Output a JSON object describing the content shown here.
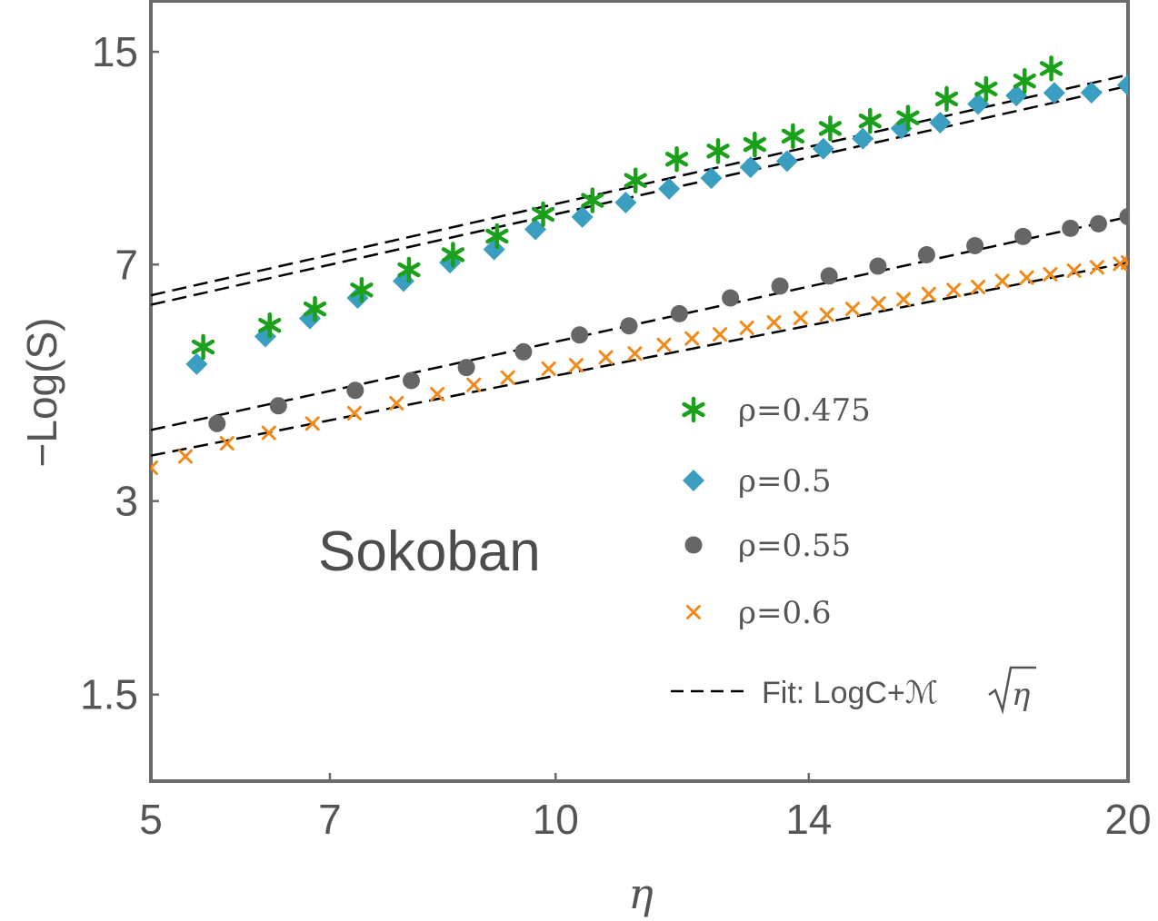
{
  "chart_data": {
    "type": "scatter",
    "title": "",
    "annotation": "Sokoban",
    "xlabel": "η",
    "ylabel": "−Log(S)",
    "x_scale": "sqrt",
    "y_scale": "log",
    "xlim": [
      5,
      20
    ],
    "ylim": [
      1.1,
      18
    ],
    "x_ticks": [
      5,
      7,
      10,
      14,
      20
    ],
    "x_tick_labels": [
      "5",
      "7",
      "10",
      "14",
      "20"
    ],
    "y_ticks": [
      1.5,
      3,
      7,
      15
    ],
    "y_tick_labels": [
      "1.5",
      "3",
      "7",
      "15"
    ],
    "series": [
      {
        "name": "ρ=0.475",
        "marker": "star",
        "color": "#1aa01a",
        "x": [
          5.55,
          6.29,
          6.82,
          7.39,
          7.99,
          8.57,
          9.17,
          9.82,
          10.54,
          11.19,
          11.83,
          12.49,
          13.09,
          13.73,
          14.37,
          15.07,
          15.75,
          16.46,
          17.2,
          17.94,
          18.46
        ],
        "y": [
          5.21,
          5.63,
          5.97,
          6.39,
          6.87,
          7.25,
          7.75,
          8.38,
          8.81,
          9.46,
          10.21,
          10.51,
          10.76,
          11.09,
          11.4,
          11.71,
          11.84,
          12.67,
          13.13,
          13.51,
          14.13
        ]
      },
      {
        "name": "ρ=0.5",
        "marker": "diamond",
        "color": "#3a9ec0",
        "x": [
          5.48,
          6.24,
          6.76,
          7.34,
          7.92,
          8.53,
          9.13,
          9.71,
          10.39,
          11.04,
          11.71,
          12.38,
          13.02,
          13.63,
          14.25,
          14.94,
          15.63,
          16.34,
          17.05,
          17.78,
          18.52,
          19.26,
          20.0
        ],
        "y": [
          4.9,
          5.41,
          5.77,
          6.21,
          6.6,
          7.05,
          7.39,
          7.94,
          8.3,
          8.74,
          9.18,
          9.54,
          9.92,
          10.14,
          10.6,
          10.99,
          11.4,
          11.64,
          12.44,
          12.82,
          12.95,
          12.96,
          13.31
        ]
      },
      {
        "name": "ρ=0.55",
        "marker": "circle",
        "color": "#666666",
        "x": [
          5.7,
          6.39,
          7.31,
          8.02,
          8.75,
          9.54,
          10.35,
          11.09,
          11.87,
          12.69,
          13.51,
          14.35,
          15.21,
          16.09,
          16.99,
          17.91,
          18.84,
          19.4,
          20.0
        ],
        "y": [
          3.96,
          4.22,
          4.46,
          4.62,
          4.84,
          5.12,
          5.44,
          5.62,
          5.87,
          6.21,
          6.48,
          6.72,
          6.96,
          7.25,
          7.49,
          7.74,
          7.97,
          8.1,
          8.31
        ]
      },
      {
        "name": "ρ=0.6",
        "marker": "x",
        "color": "#f08a1a",
        "x": [
          5.0,
          5.36,
          5.81,
          6.28,
          6.79,
          7.3,
          7.83,
          8.36,
          8.85,
          9.32,
          9.9,
          10.3,
          10.74,
          11.18,
          11.63,
          12.07,
          12.52,
          12.96,
          13.41,
          13.86,
          14.31,
          14.76,
          15.22,
          15.67,
          16.13,
          16.59,
          17.05,
          17.51,
          17.98,
          18.44,
          18.91,
          19.37,
          19.84,
          20.0
        ],
        "y": [
          3.38,
          3.52,
          3.69,
          3.83,
          3.96,
          4.11,
          4.26,
          4.4,
          4.55,
          4.67,
          4.82,
          4.88,
          5.02,
          5.09,
          5.25,
          5.37,
          5.45,
          5.58,
          5.69,
          5.78,
          5.85,
          5.97,
          6.09,
          6.18,
          6.3,
          6.39,
          6.46,
          6.6,
          6.68,
          6.76,
          6.85,
          6.93,
          7.02,
          7.05
        ]
      }
    ],
    "fits": [
      {
        "name": "fit-0.475",
        "x": [
          5,
          20
        ],
        "y": [
          6.27,
          13.81
        ]
      },
      {
        "name": "fit-0.5",
        "x": [
          5,
          20
        ],
        "y": [
          6.06,
          13.27
        ]
      },
      {
        "name": "fit-0.55",
        "x": [
          5,
          20
        ],
        "y": [
          3.87,
          8.3
        ]
      },
      {
        "name": "fit-0.6",
        "x": [
          5,
          20
        ],
        "y": [
          3.53,
          7.05
        ]
      }
    ],
    "legend": {
      "position": "bottom-right",
      "entries": [
        "ρ=0.475",
        "ρ=0.5",
        "ρ=0.55",
        "ρ=0.6"
      ],
      "fit_label": "Fit: LogC+ℳ",
      "fit_sqrt": "η"
    }
  }
}
